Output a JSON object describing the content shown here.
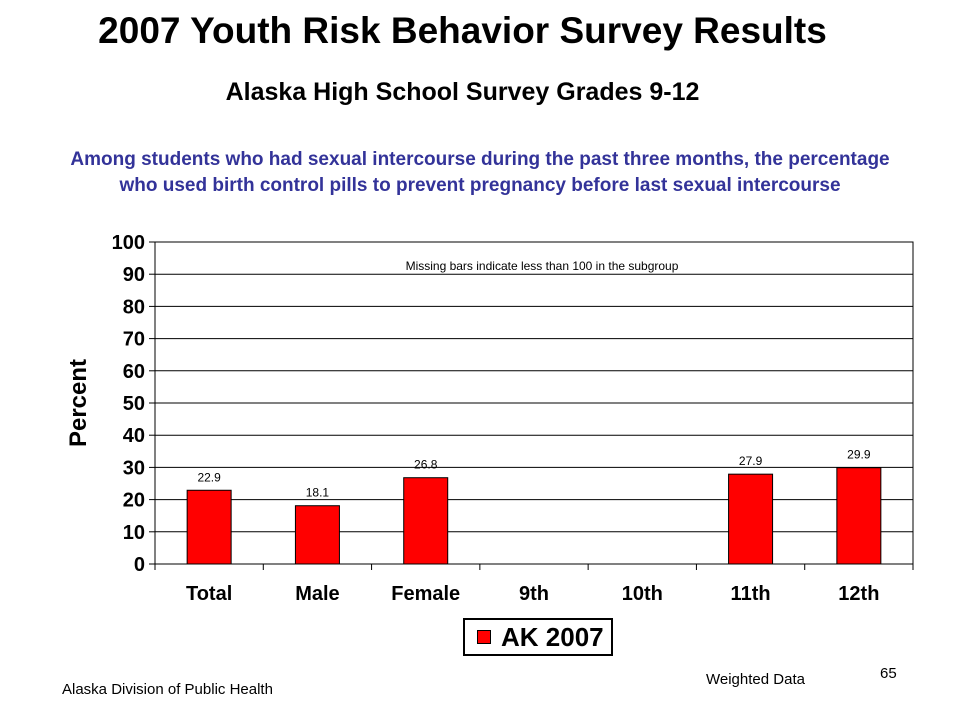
{
  "slide": {
    "title": "2007 Youth Risk Behavior Survey Results",
    "subtitle": "Alaska High School Survey Grades 9-12",
    "question": "Among students who had sexual intercourse during the past three months, the percentage who used birth control pills to prevent pregnancy before last sexual intercourse",
    "footer_left": "Alaska Division of Public Health",
    "footer_mid": "Weighted Data",
    "page_number": "65"
  },
  "chart_data": {
    "type": "bar",
    "ylabel": "Percent",
    "xlabel": "",
    "ylim": [
      0,
      100
    ],
    "yticks": [
      0,
      10,
      20,
      30,
      40,
      50,
      60,
      70,
      80,
      90,
      100
    ],
    "grid": true,
    "legend_position": "bottom",
    "annotation": "Missing bars indicate less than 100 in the subgroup",
    "categories": [
      "Total",
      "Male",
      "Female",
      "9th",
      "10th",
      "11th",
      "12th"
    ],
    "series": [
      {
        "name": "AK 2007",
        "color": "#ff0000",
        "values": [
          22.9,
          18.1,
          26.8,
          null,
          null,
          27.9,
          29.9
        ],
        "labels": [
          "22.9",
          "18.1",
          "26.8",
          "",
          "",
          "27.9",
          "29.9"
        ]
      }
    ]
  }
}
